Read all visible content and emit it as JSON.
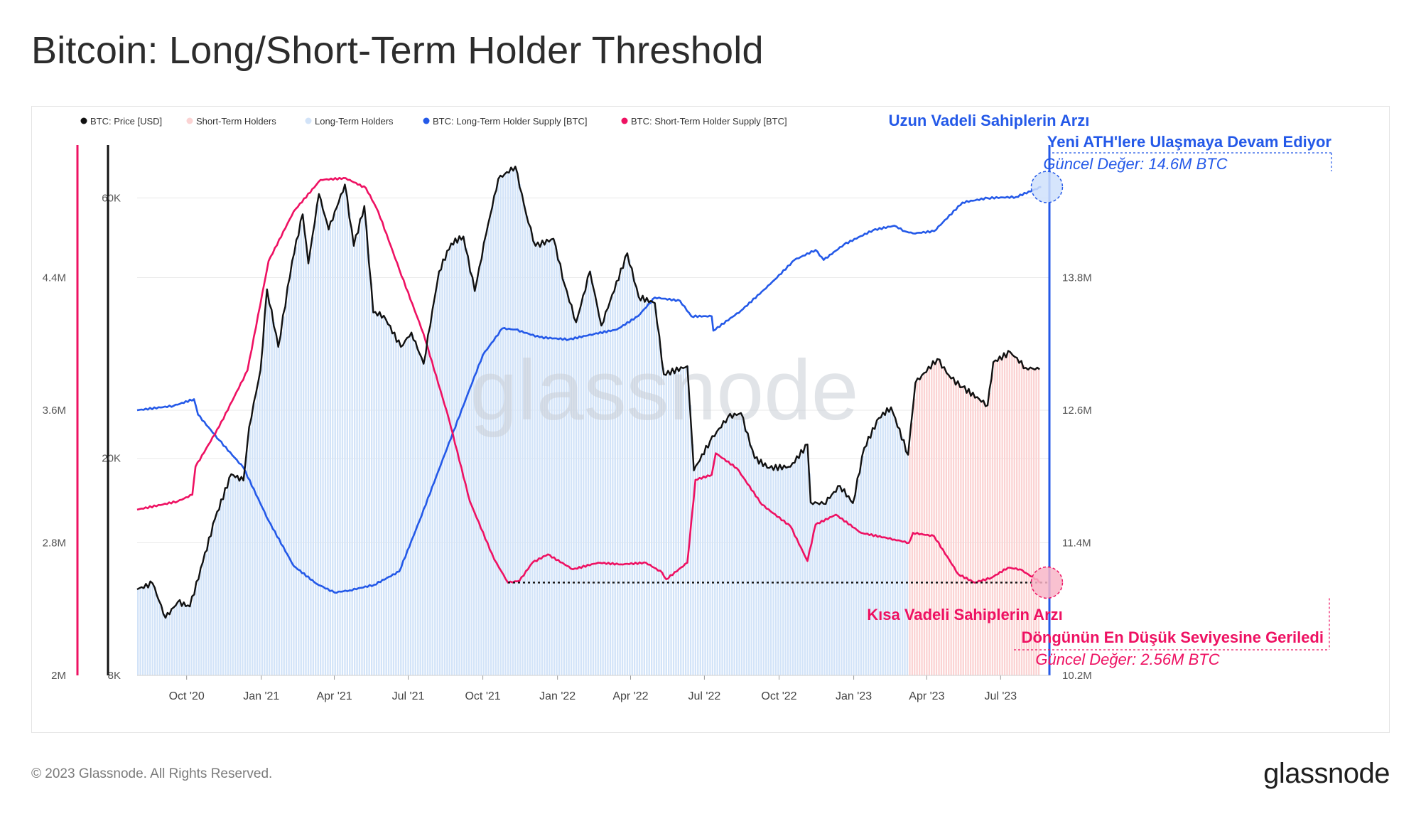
{
  "title": "Bitcoin: Long/Short-Term Holder Threshold",
  "footer": {
    "copyright": "© 2023 Glassnode. All Rights Reserved.",
    "logo": "glassnode"
  },
  "watermark": "glassnode",
  "colors": {
    "price": "#111111",
    "sth_fill": "#fbd3d3",
    "lth_fill": "#d2e3f8",
    "lth_supply": "#2459e8",
    "sth_supply": "#ee1162",
    "grid": "#e9e9e9"
  },
  "legend": {
    "placement": "top-left",
    "items": [
      {
        "label": "BTC: Price [USD]",
        "color": "#111111"
      },
      {
        "label": "Short-Term Holders",
        "color": "#fbd3d3"
      },
      {
        "label": "Long-Term Holders",
        "color": "#d2e3f8"
      },
      {
        "label": "BTC: Long-Term Holder Supply [BTC]",
        "color": "#2459e8"
      },
      {
        "label": "BTC: Short-Term Holder Supply [BTC]",
        "color": "#ee1162"
      }
    ]
  },
  "annotations": {
    "lth_line1": "Uzun Vadeli Sahiplerin Arzı",
    "lth_line2": "Yeni ATH'lere Ulaşmaya Devam Ediyor",
    "lth_value": "Güncel Değer: 14.6M BTC",
    "sth_line1": "Kısa Vadeli Sahiplerin Arzı",
    "sth_line2": "Döngünün En Düşük Seviyesine Geriledi",
    "sth_value": "Güncel Değer: 2.56M BTC"
  },
  "chart_data": {
    "type": "line",
    "x_start": "2020-08-01",
    "x_end": "2023-08-31",
    "x_ticks": [
      "Oct '20",
      "Jan '21",
      "Apr '21",
      "Jul '21",
      "Oct '21",
      "Jan '22",
      "Apr '22",
      "Jul '22",
      "Oct '22",
      "Jan '23",
      "Apr '23",
      "Jul '23"
    ],
    "price_axis": {
      "scale": "log",
      "range": [
        8000,
        75000
      ],
      "ticks": [
        8000,
        20000,
        60000
      ],
      "tick_labels": [
        "8K",
        "20K",
        "60K"
      ]
    },
    "sth_axis": {
      "scale": "linear",
      "range": [
        2000000,
        5200000
      ],
      "ticks": [
        2000000,
        2800000,
        3600000,
        4400000
      ],
      "tick_labels": [
        "2M",
        "2.8M",
        "3.6M",
        "4.4M"
      ]
    },
    "lth_axis": {
      "scale": "linear",
      "range": [
        10200000,
        15000000
      ],
      "ticks": [
        10200000,
        11400000,
        12600000,
        13800000
      ],
      "tick_labels": [
        "10.2M",
        "11.4M",
        "12.6M",
        "13.8M"
      ]
    },
    "regime_switch_date": "2023-03-10",
    "series": [
      {
        "name": "BTC: Price [USD]",
        "points": [
          [
            "2020-08-01",
            11500
          ],
          [
            "2020-08-20",
            11800
          ],
          [
            "2020-09-05",
            10200
          ],
          [
            "2020-09-20",
            10900
          ],
          [
            "2020-10-05",
            10700
          ],
          [
            "2020-10-21",
            12900
          ],
          [
            "2020-11-05",
            15500
          ],
          [
            "2020-11-25",
            18700
          ],
          [
            "2020-12-10",
            18200
          ],
          [
            "2020-12-17",
            22800
          ],
          [
            "2020-12-31",
            29000
          ],
          [
            "2021-01-08",
            40800
          ],
          [
            "2021-01-22",
            32000
          ],
          [
            "2021-02-08",
            46000
          ],
          [
            "2021-02-21",
            56000
          ],
          [
            "2021-02-28",
            45500
          ],
          [
            "2021-03-13",
            61000
          ],
          [
            "2021-03-25",
            52500
          ],
          [
            "2021-04-14",
            63500
          ],
          [
            "2021-04-25",
            49000
          ],
          [
            "2021-05-08",
            58000
          ],
          [
            "2021-05-19",
            37000
          ],
          [
            "2021-06-01",
            36500
          ],
          [
            "2021-06-22",
            32000
          ],
          [
            "2021-07-05",
            34000
          ],
          [
            "2021-07-20",
            29800
          ],
          [
            "2021-08-08",
            44000
          ],
          [
            "2021-08-23",
            49500
          ],
          [
            "2021-09-07",
            51000
          ],
          [
            "2021-09-21",
            40500
          ],
          [
            "2021-10-05",
            51500
          ],
          [
            "2021-10-20",
            65000
          ],
          [
            "2021-11-10",
            68500
          ],
          [
            "2021-11-26",
            54000
          ],
          [
            "2021-12-05",
            49000
          ],
          [
            "2021-12-27",
            50500
          ],
          [
            "2022-01-10",
            41500
          ],
          [
            "2022-01-24",
            35500
          ],
          [
            "2022-02-10",
            44000
          ],
          [
            "2022-02-24",
            35000
          ],
          [
            "2022-03-28",
            47500
          ],
          [
            "2022-04-11",
            39500
          ],
          [
            "2022-05-01",
            38500
          ],
          [
            "2022-05-12",
            28500
          ],
          [
            "2022-06-10",
            29500
          ],
          [
            "2022-06-18",
            19000
          ],
          [
            "2022-07-08",
            21500
          ],
          [
            "2022-07-30",
            23800
          ],
          [
            "2022-08-15",
            24200
          ],
          [
            "2022-09-01",
            20000
          ],
          [
            "2022-09-19",
            19200
          ],
          [
            "2022-10-15",
            19300
          ],
          [
            "2022-11-05",
            21200
          ],
          [
            "2022-11-09",
            16600
          ],
          [
            "2022-11-25",
            16500
          ],
          [
            "2022-12-15",
            17800
          ],
          [
            "2022-12-31",
            16550
          ],
          [
            "2023-01-14",
            20900
          ],
          [
            "2023-02-01",
            23700
          ],
          [
            "2023-02-16",
            24800
          ],
          [
            "2023-03-09",
            20300
          ],
          [
            "2023-03-18",
            27500
          ],
          [
            "2023-04-14",
            30400
          ],
          [
            "2023-05-01",
            28000
          ],
          [
            "2023-05-15",
            27000
          ],
          [
            "2023-06-15",
            25000
          ],
          [
            "2023-06-22",
            30000
          ],
          [
            "2023-07-13",
            31300
          ],
          [
            "2023-08-01",
            29300
          ],
          [
            "2023-08-18",
            29100
          ]
        ]
      },
      {
        "name": "BTC: Long-Term Holder Supply [BTC]",
        "points": [
          [
            "2020-08-01",
            12600000
          ],
          [
            "2020-09-15",
            12640000
          ],
          [
            "2020-10-10",
            12700000
          ],
          [
            "2020-10-15",
            12560000
          ],
          [
            "2020-11-10",
            12330000
          ],
          [
            "2020-12-10",
            12080000
          ],
          [
            "2021-01-10",
            11600000
          ],
          [
            "2021-02-10",
            11190000
          ],
          [
            "2021-03-10",
            11030000
          ],
          [
            "2021-04-01",
            10950000
          ],
          [
            "2021-04-20",
            10970000
          ],
          [
            "2021-05-20",
            11020000
          ],
          [
            "2021-06-20",
            11140000
          ],
          [
            "2021-07-15",
            11600000
          ],
          [
            "2021-08-15",
            12200000
          ],
          [
            "2021-09-10",
            12700000
          ],
          [
            "2021-10-01",
            13100000
          ],
          [
            "2021-10-25",
            13340000
          ],
          [
            "2021-11-10",
            13330000
          ],
          [
            "2021-12-10",
            13260000
          ],
          [
            "2022-01-15",
            13240000
          ],
          [
            "2022-02-15",
            13290000
          ],
          [
            "2022-03-15",
            13330000
          ],
          [
            "2022-04-10",
            13450000
          ],
          [
            "2022-05-01",
            13620000
          ],
          [
            "2022-06-01",
            13590000
          ],
          [
            "2022-06-15",
            13450000
          ],
          [
            "2022-07-10",
            13450000
          ],
          [
            "2022-07-12",
            13320000
          ],
          [
            "2022-08-15",
            13500000
          ],
          [
            "2022-09-20",
            13740000
          ],
          [
            "2022-10-20",
            13960000
          ],
          [
            "2022-11-15",
            14050000
          ],
          [
            "2022-11-25",
            13960000
          ],
          [
            "2022-12-20",
            14100000
          ],
          [
            "2023-01-25",
            14230000
          ],
          [
            "2023-02-20",
            14270000
          ],
          [
            "2023-03-05",
            14220000
          ],
          [
            "2023-03-15",
            14200000
          ],
          [
            "2023-04-10",
            14220000
          ],
          [
            "2023-05-15",
            14480000
          ],
          [
            "2023-06-15",
            14520000
          ],
          [
            "2023-07-20",
            14530000
          ],
          [
            "2023-08-20",
            14620000
          ]
        ]
      },
      {
        "name": "BTC: Short-Term Holder Supply [BTC]",
        "points": [
          [
            "2020-08-01",
            3000000
          ],
          [
            "2020-09-20",
            3050000
          ],
          [
            "2020-10-08",
            3090000
          ],
          [
            "2020-10-12",
            3260000
          ],
          [
            "2020-11-10",
            3500000
          ],
          [
            "2020-12-15",
            3840000
          ],
          [
            "2021-01-10",
            4500000
          ],
          [
            "2021-02-10",
            4800000
          ],
          [
            "2021-03-15",
            4990000
          ],
          [
            "2021-04-15",
            5000000
          ],
          [
            "2021-05-10",
            4940000
          ],
          [
            "2021-05-25",
            4800000
          ],
          [
            "2021-06-20",
            4450000
          ],
          [
            "2021-07-20",
            4060000
          ],
          [
            "2021-08-20",
            3550000
          ],
          [
            "2021-09-15",
            3050000
          ],
          [
            "2021-10-15",
            2700000
          ],
          [
            "2021-11-01",
            2560000
          ],
          [
            "2021-11-15",
            2570000
          ],
          [
            "2021-12-01",
            2680000
          ],
          [
            "2021-12-20",
            2730000
          ],
          [
            "2022-01-20",
            2640000
          ],
          [
            "2022-02-20",
            2680000
          ],
          [
            "2022-03-20",
            2670000
          ],
          [
            "2022-04-20",
            2680000
          ],
          [
            "2022-05-10",
            2620000
          ],
          [
            "2022-05-15",
            2580000
          ],
          [
            "2022-06-10",
            2680000
          ],
          [
            "2022-06-20",
            3180000
          ],
          [
            "2022-07-10",
            3210000
          ],
          [
            "2022-07-15",
            3340000
          ],
          [
            "2022-08-10",
            3250000
          ],
          [
            "2022-09-10",
            3030000
          ],
          [
            "2022-10-15",
            2900000
          ],
          [
            "2022-11-05",
            2690000
          ],
          [
            "2022-11-15",
            2910000
          ],
          [
            "2022-12-10",
            2970000
          ],
          [
            "2023-01-10",
            2860000
          ],
          [
            "2023-02-20",
            2820000
          ],
          [
            "2023-03-10",
            2800000
          ],
          [
            "2023-03-15",
            2860000
          ],
          [
            "2023-04-10",
            2840000
          ],
          [
            "2023-05-10",
            2610000
          ],
          [
            "2023-05-30",
            2560000
          ],
          [
            "2023-06-20",
            2590000
          ],
          [
            "2023-07-10",
            2650000
          ],
          [
            "2023-07-25",
            2640000
          ],
          [
            "2023-08-20",
            2560000
          ]
        ]
      }
    ],
    "reference_line": {
      "from": "2021-11-01",
      "to": "2023-08-20",
      "value": 2560000,
      "style": "dotted"
    }
  }
}
